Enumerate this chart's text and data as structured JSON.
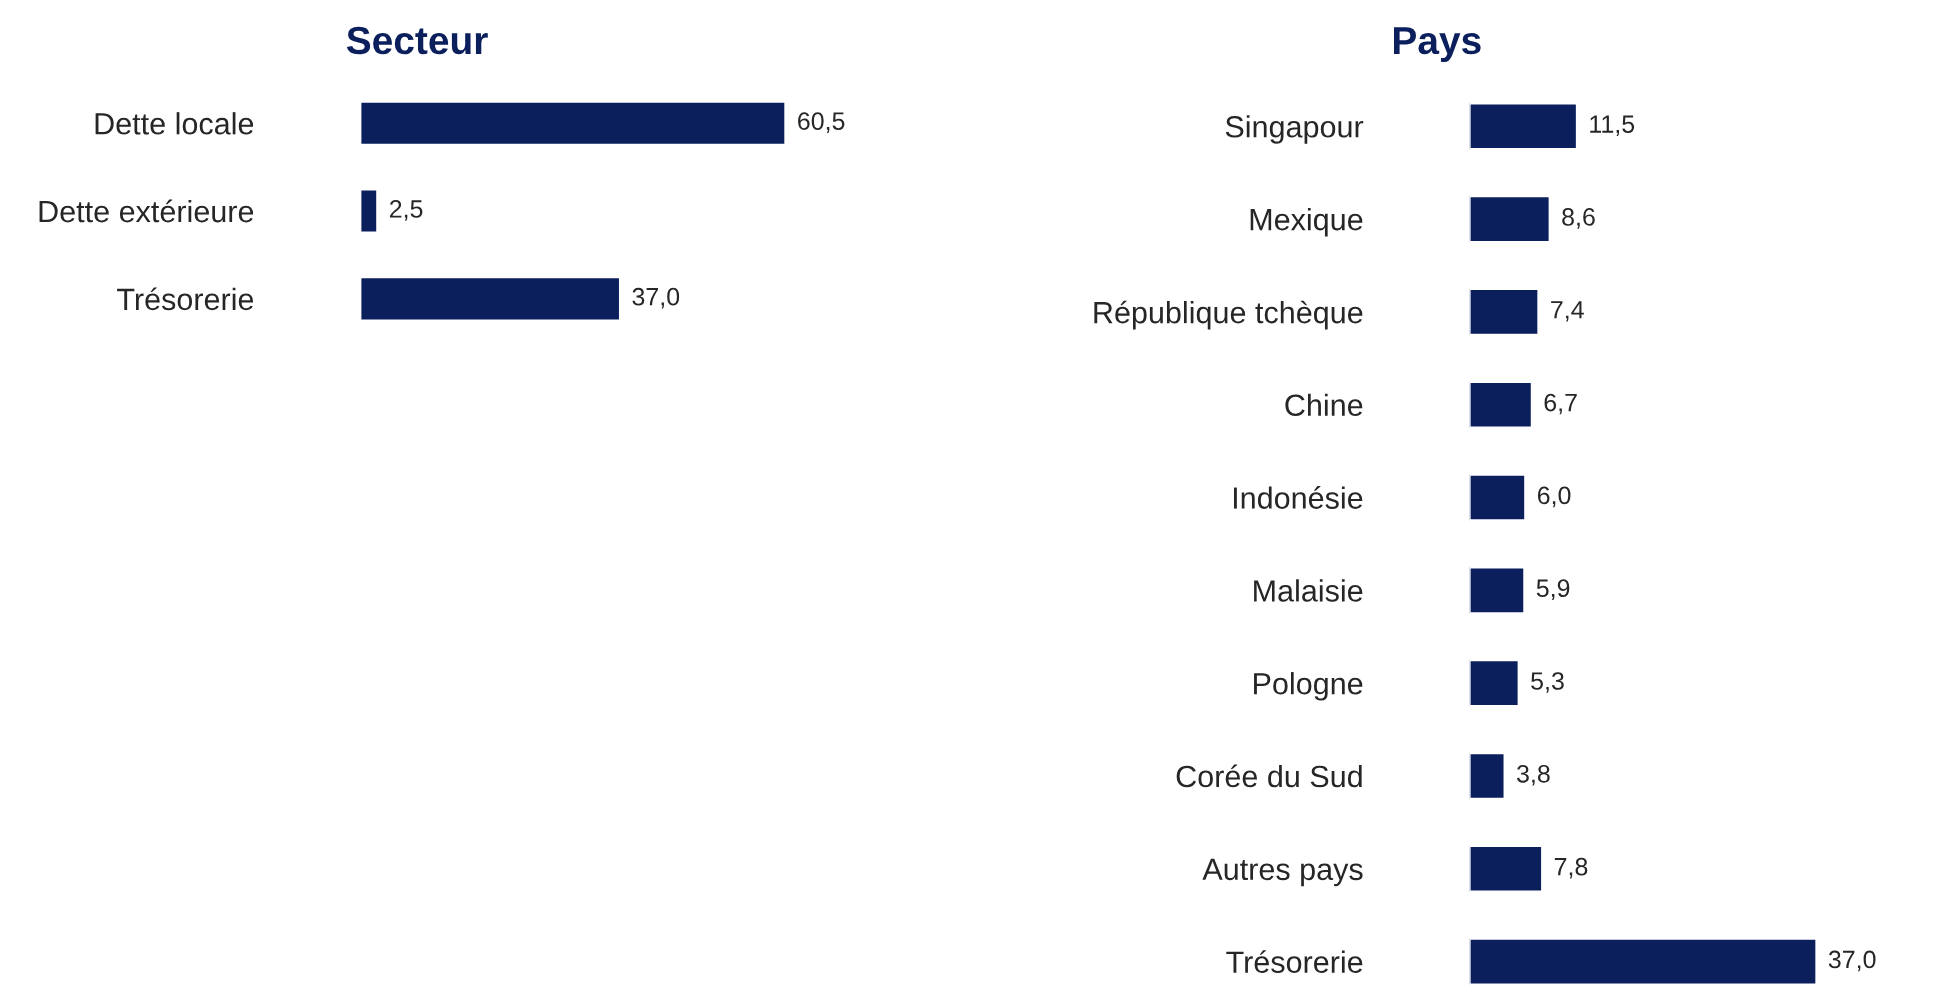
{
  "chart_data": [
    {
      "type": "bar",
      "orientation": "horizontal",
      "title": "Secteur",
      "categories": [
        "Dette locale",
        "Dette extérieure",
        "Trésorerie"
      ],
      "values": [
        60.5,
        2.5,
        37.0
      ],
      "color": "#0a1f5c",
      "value_labels": [
        "60,5",
        "2,5",
        "37,0"
      ],
      "grid": false,
      "legend": false
    },
    {
      "type": "bar",
      "orientation": "horizontal",
      "title": "Pays",
      "categories": [
        "Singapour",
        "Mexique",
        "République tchèque",
        "Chine",
        "Indonésie",
        "Malaisie",
        "Pologne",
        "Corée du Sud",
        "Autres pays",
        "Trésorerie"
      ],
      "values": [
        11.5,
        8.6,
        7.4,
        6.7,
        6.0,
        5.9,
        5.3,
        3.8,
        7.8,
        37.0
      ],
      "color": "#0a1f5c",
      "value_labels": [
        "11,5",
        "8,6",
        "7,4",
        "6,7",
        "6,0",
        "5,9",
        "5,3",
        "3,8",
        "7,8",
        "37,0"
      ],
      "grid": false,
      "legend": false
    }
  ]
}
